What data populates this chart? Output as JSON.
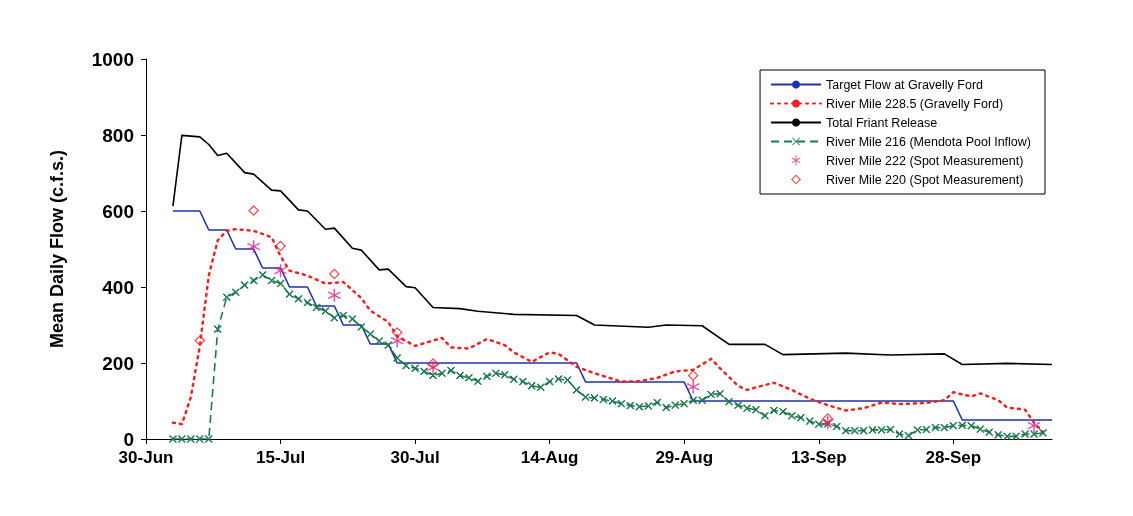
{
  "chart_data": {
    "type": "line",
    "ylabel": "Mean Daily Flow (c.f.s.)",
    "xlim": [
      "--06-30",
      "--10-09"
    ],
    "xticks": [
      {
        "value": "--06-30",
        "label": "30-Jun"
      },
      {
        "value": "--07-15",
        "label": "15-Jul"
      },
      {
        "value": "--07-30",
        "label": "30-Jul"
      },
      {
        "value": "--08-14",
        "label": "14-Aug"
      },
      {
        "value": "--08-29",
        "label": "29-Aug"
      },
      {
        "value": "--09-13",
        "label": "13-Sep"
      },
      {
        "value": "--09-28",
        "label": "28-Sep"
      }
    ],
    "ylim": [
      0,
      1000
    ],
    "yticks": [
      0,
      200,
      400,
      600,
      800,
      1000
    ],
    "grid": false,
    "legend": "top right",
    "series": [
      {
        "name": "Target Flow at Gravelly Ford",
        "color": "#2233aa",
        "line_style": "solid",
        "marker": "none",
        "x": [
          "--07-03",
          "--07-06",
          "--07-07",
          "--07-09",
          "--07-10",
          "--07-12",
          "--07-13",
          "--07-15",
          "--07-16",
          "--07-18",
          "--07-19",
          "--07-21",
          "--07-22",
          "--07-24",
          "--07-25",
          "--07-27",
          "--07-28",
          "--08-17",
          "--08-18",
          "--08-29",
          "--08-30",
          "--09-28",
          "--09-29",
          "--10-09"
        ],
        "values": [
          600,
          600,
          550,
          550,
          500,
          500,
          450,
          450,
          400,
          400,
          350,
          350,
          300,
          300,
          250,
          250,
          200,
          200,
          150,
          150,
          100,
          100,
          50,
          50
        ]
      },
      {
        "name": "River Mile 228.5 (Gravelly Ford)",
        "color": "#ee2222",
        "line_style": "dotted",
        "marker": "none",
        "x": [
          "--07-03",
          "--07-04",
          "--07-05",
          "--07-06",
          "--07-07",
          "--07-08",
          "--07-09",
          "--07-10",
          "--07-12",
          "--07-14",
          "--07-15",
          "--07-16",
          "--07-18",
          "--07-20",
          "--07-22",
          "--07-24",
          "--07-25",
          "--07-27",
          "--07-28",
          "--07-30",
          "--08-02",
          "--08-03",
          "--08-05",
          "--08-07",
          "--08-09",
          "--08-10",
          "--08-12",
          "--08-14",
          "--08-15",
          "--08-17",
          "--08-19",
          "--08-22",
          "--08-24",
          "--08-26",
          "--08-28",
          "--08-30",
          "--09-01",
          "--09-02",
          "--09-04",
          "--09-05",
          "--09-06",
          "--09-08",
          "--09-10",
          "--09-12",
          "--09-14",
          "--09-16",
          "--09-18",
          "--09-20",
          "--09-22",
          "--09-25",
          "--09-27",
          "--09-28",
          "--09-30",
          "--10-01",
          "--10-03",
          "--10-04",
          "--10-06",
          "--10-07",
          "--10-08"
        ],
        "values": [
          43,
          39,
          110,
          245,
          430,
          523,
          548,
          552,
          548,
          531,
          481,
          443,
          430,
          409,
          413,
          371,
          338,
          308,
          270,
          245,
          266,
          241,
          238,
          263,
          247,
          228,
          203,
          228,
          224,
          190,
          173,
          151,
          152,
          161,
          178,
          182,
          211,
          186,
          140,
          129,
          136,
          148,
          129,
          106,
          89,
          75,
          81,
          96,
          92,
          95,
          102,
          123,
          112,
          120,
          102,
          83,
          77,
          43,
          18
        ]
      },
      {
        "name": "Total Friant Release",
        "color": "#000000",
        "line_style": "solid",
        "marker": "none",
        "x": [
          "--07-03",
          "--07-04",
          "--07-06",
          "--07-07",
          "--07-08",
          "--07-09",
          "--07-11",
          "--07-12",
          "--07-14",
          "--07-15",
          "--07-17",
          "--07-18",
          "--07-20",
          "--07-21",
          "--07-23",
          "--07-24",
          "--07-26",
          "--07-27",
          "--07-29",
          "--07-30",
          "--08-01",
          "--08-04",
          "--08-06",
          "--08-10",
          "--08-17",
          "--08-19",
          "--08-25",
          "--08-27",
          "--08-31",
          "--09-03",
          "--09-07",
          "--09-09",
          "--09-16",
          "--09-21",
          "--09-27",
          "--09-29",
          "--10-04",
          "--10-09"
        ],
        "values": [
          613,
          799,
          795,
          775,
          746,
          752,
          701,
          697,
          655,
          653,
          603,
          600,
          552,
          555,
          502,
          497,
          445,
          447,
          401,
          398,
          346,
          343,
          336,
          328,
          325,
          300,
          294,
          300,
          298,
          249,
          249,
          222,
          226,
          221,
          224,
          196,
          199,
          196
        ]
      },
      {
        "name": "River Mile 216 (Mendota Pool Inflow)",
        "color": "#1a7a4a",
        "line_style": "dashed",
        "marker": "cross",
        "x": [
          "--07-03",
          "--07-04",
          "--07-05",
          "--07-06",
          "--07-07",
          "--07-08",
          "--07-09",
          "--07-10",
          "--07-11",
          "--07-12",
          "--07-13",
          "--07-14",
          "--07-15",
          "--07-16",
          "--07-17",
          "--07-18",
          "--07-19",
          "--07-20",
          "--07-21",
          "--07-22",
          "--07-23",
          "--07-24",
          "--07-25",
          "--07-26",
          "--07-27",
          "--07-28",
          "--07-29",
          "--07-30",
          "--07-31",
          "--08-01",
          "--08-02",
          "--08-03",
          "--08-04",
          "--08-05",
          "--08-06",
          "--08-07",
          "--08-08",
          "--08-09",
          "--08-10",
          "--08-11",
          "--08-12",
          "--08-13",
          "--08-14",
          "--08-15",
          "--08-16",
          "--08-17",
          "--08-18",
          "--08-19",
          "--08-20",
          "--08-21",
          "--08-22",
          "--08-23",
          "--08-24",
          "--08-25",
          "--08-26",
          "--08-27",
          "--08-28",
          "--08-29",
          "--08-30",
          "--08-31",
          "--09-01",
          "--09-02",
          "--09-03",
          "--09-04",
          "--09-05",
          "--09-06",
          "--09-07",
          "--09-08",
          "--09-09",
          "--09-10",
          "--09-11",
          "--09-12",
          "--09-13",
          "--09-14",
          "--09-15",
          "--09-16",
          "--09-17",
          "--09-18",
          "--09-19",
          "--09-20",
          "--09-21",
          "--09-22",
          "--09-23",
          "--09-24",
          "--09-25",
          "--09-26",
          "--09-27",
          "--09-28",
          "--09-29",
          "--09-30",
          "--10-01",
          "--10-02",
          "--10-03",
          "--10-04",
          "--10-05",
          "--10-06",
          "--10-07",
          "--10-08"
        ],
        "values": [
          0,
          0,
          0,
          0,
          0,
          289,
          373,
          386,
          405,
          417,
          432,
          417,
          409,
          381,
          369,
          359,
          346,
          337,
          319,
          325,
          316,
          295,
          276,
          258,
          247,
          213,
          193,
          186,
          178,
          167,
          173,
          180,
          167,
          161,
          152,
          165,
          173,
          169,
          157,
          151,
          140,
          136,
          151,
          158,
          155,
          129,
          110,
          108,
          104,
          100,
          93,
          88,
          85,
          87,
          96,
          83,
          89,
          93,
          102,
          102,
          117,
          119,
          98,
          89,
          81,
          77,
          61,
          75,
          72,
          61,
          56,
          47,
          39,
          40,
          33,
          22,
          22,
          22,
          24,
          24,
          25,
          13,
          9,
          24,
          25,
          30,
          30,
          35,
          36,
          35,
          26,
          18,
          11,
          7,
          7,
          13,
          13,
          16
        ]
      },
      {
        "name": "River Mile 222 (Spot Measurement)",
        "type": "scatter",
        "color": "#dd2288",
        "marker": "star",
        "x": [
          "--07-12",
          "--07-15",
          "--07-21",
          "--07-28",
          "--08-01",
          "--08-30",
          "--09-14",
          "--10-07"
        ],
        "values": [
          506,
          443,
          378,
          258,
          188,
          137,
          43,
          35
        ]
      },
      {
        "name": "River Mile 220 (Spot Measurement)",
        "type": "scatter",
        "color": "#ee2222",
        "marker": "diamond",
        "x": [
          "--07-06",
          "--07-12",
          "--07-15",
          "--07-21",
          "--07-28",
          "--08-01",
          "--08-30",
          "--09-14"
        ],
        "values": [
          259,
          601,
          508,
          434,
          280,
          199,
          167,
          54
        ]
      }
    ]
  }
}
